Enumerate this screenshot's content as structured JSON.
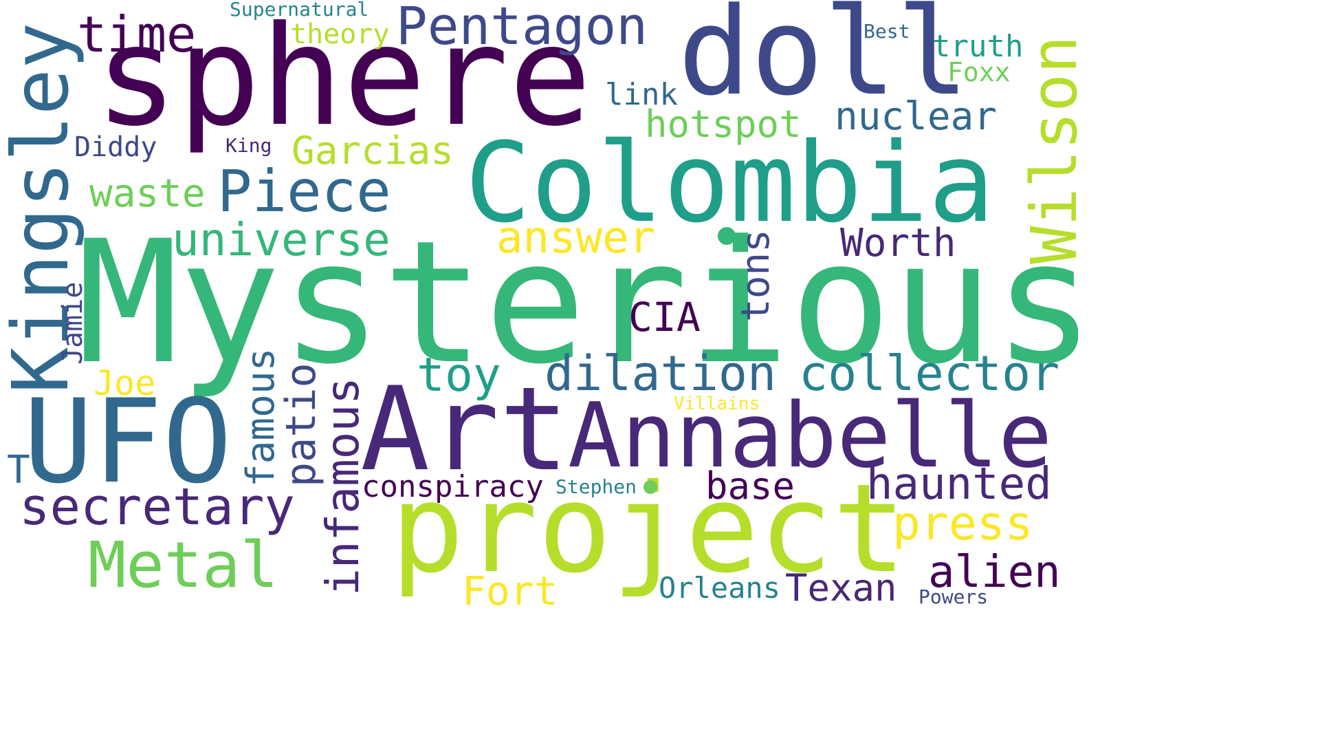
{
  "wordcloud": {
    "colors": {
      "background": "#ffffff",
      "v0": "#440154",
      "v1": "#482878",
      "v2": "#3e4989",
      "v3": "#31688e",
      "v4": "#26828e",
      "v5": "#1f9e89",
      "v6": "#35b779",
      "v7": "#6ece58",
      "v8": "#b5de2b",
      "v9": "#fde725"
    },
    "words": {
      "mysterious": "Mysterious",
      "sphere": "sphere",
      "colombia": "Colombia",
      "doll": "doll",
      "project": "project",
      "art": "Art",
      "annabelle": "Annabelle",
      "ufo": "UFO",
      "pentagon": "Pentagon",
      "time": "time",
      "piece": "Piece",
      "universe": "universe",
      "metal": "Metal",
      "secretary": "secretary",
      "dilation": "dilation",
      "collector": "collector",
      "answer": "answer",
      "hotspot": "hotspot",
      "nuclear": "nuclear",
      "worth": "Worth",
      "haunted": "haunted",
      "press": "press",
      "alien": "alien",
      "texan": "Texan",
      "base": "base",
      "toy": "toy",
      "garcias": "Garcias",
      "waste": "waste",
      "theory": "theory",
      "link": "link",
      "truth": "truth",
      "foxx": "Foxx",
      "best": "Best",
      "supernatural": "Supernatural",
      "diddy": "Diddy",
      "king": "King",
      "joe": "Joe",
      "cia": "CIA",
      "conspiracy": "conspiracy",
      "stephen": "Stephen",
      "villains": "Villains",
      "orleans": "Orleans",
      "fort": "Fort",
      "powers": "Powers",
      "t": "T",
      "kingsley": "Kingsley",
      "wilson": "Wilson",
      "tons": "tons",
      "famous": "famous",
      "patio": "patio",
      "infamous": "infamous",
      "jamie": "Jamie"
    }
  }
}
